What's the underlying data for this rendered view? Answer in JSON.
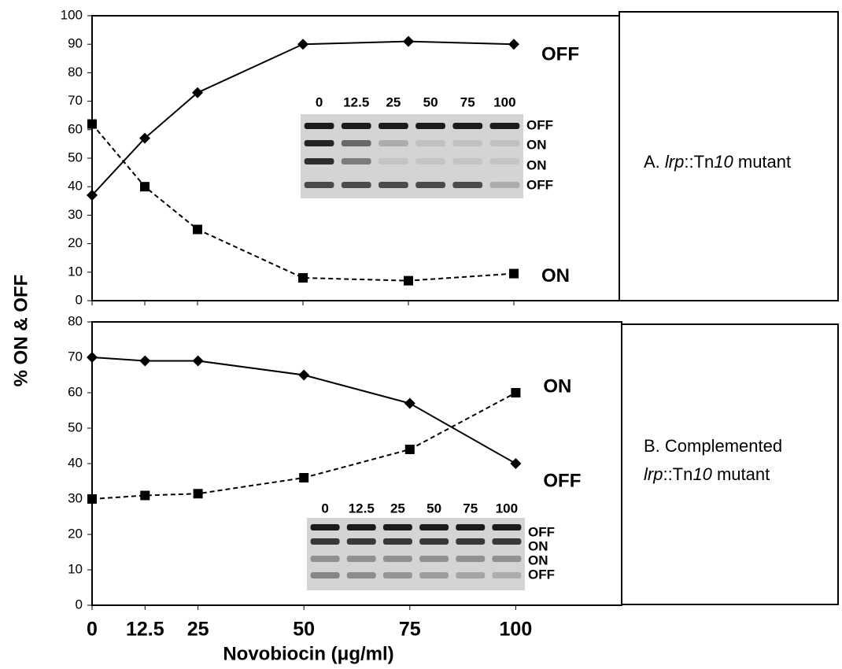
{
  "chart_data": [
    {
      "type": "line",
      "x": [
        0,
        12.5,
        25,
        50,
        75,
        100
      ],
      "xlim": [
        0,
        125
      ],
      "ylim": [
        0,
        100
      ],
      "yticks": [
        0,
        10,
        20,
        30,
        40,
        50,
        60,
        70,
        80,
        90,
        100
      ],
      "series": [
        {
          "name": "OFF",
          "color": "#000000",
          "marker": "diamond",
          "dashed": false,
          "values": [
            37,
            57,
            73,
            90,
            91,
            90
          ]
        },
        {
          "name": "ON",
          "color": "#000000",
          "marker": "square",
          "dashed": true,
          "values": [
            62,
            40,
            25,
            8,
            7,
            9.5
          ]
        }
      ],
      "panel_label": [
        "A. ",
        "lrp",
        "::Tn",
        "10",
        " mutant"
      ],
      "gel_lanes": [
        "0",
        "12.5",
        "25",
        "50",
        "75",
        "100"
      ],
      "gel_bands": [
        "OFF",
        "ON",
        "ON",
        "OFF"
      ]
    },
    {
      "type": "line",
      "x": [
        0,
        12.5,
        25,
        50,
        75,
        100
      ],
      "xlim": [
        0,
        125
      ],
      "ylim": [
        0,
        80
      ],
      "yticks": [
        0,
        10,
        20,
        30,
        40,
        50,
        60,
        70,
        80
      ],
      "xticks": [
        0,
        12.5,
        25,
        50,
        75,
        100
      ],
      "series": [
        {
          "name": "OFF",
          "color": "#000000",
          "marker": "diamond",
          "dashed": false,
          "values": [
            70,
            69,
            69,
            65,
            57,
            40
          ]
        },
        {
          "name": "ON",
          "color": "#000000",
          "marker": "square",
          "dashed": true,
          "values": [
            30,
            31,
            31.5,
            36,
            44,
            60
          ]
        }
      ],
      "panel_label": [
        "B. Complemented",
        "lrp",
        "::Tn",
        "10",
        " mutant"
      ],
      "gel_lanes": [
        "0",
        "12.5",
        "25",
        "50",
        "75",
        "100"
      ],
      "gel_bands": [
        "OFF",
        "ON",
        "ON",
        "OFF"
      ],
      "xlabel": "Novobiocin (μg/ml)",
      "ylabel": "% ON & OFF"
    }
  ]
}
